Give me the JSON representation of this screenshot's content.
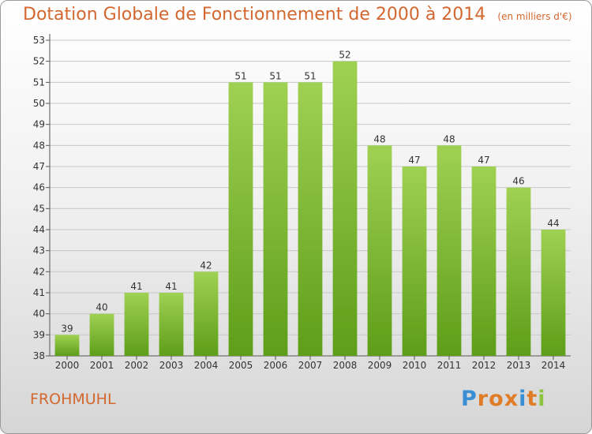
{
  "header": {
    "title": "Dotation Globale de Fonctionnement de 2000 à 2014",
    "unit_note": "(en milliers d'€)"
  },
  "footer": {
    "commune": "FROHMUHL",
    "logo_text": "Proxiti",
    "logo_colors": [
      "#3a8fd4",
      "#e07b27",
      "#e07b27",
      "#e07b27",
      "#3a8fd4",
      "#e07b27",
      "#8cc540"
    ]
  },
  "colors": {
    "bar": "#7cbd2e",
    "bar_light": "#9fd152",
    "bar_dark": "#5e9e18",
    "text_accent": "#d2672f",
    "grid": "#c8c8c8"
  },
  "chart_data": {
    "type": "bar",
    "categories": [
      "2000",
      "2001",
      "2002",
      "2003",
      "2004",
      "2005",
      "2006",
      "2007",
      "2008",
      "2009",
      "2010",
      "2011",
      "2012",
      "2013",
      "2014"
    ],
    "values": [
      39,
      40,
      41,
      41,
      42,
      51,
      51,
      51,
      52,
      48,
      47,
      48,
      47,
      46,
      44
    ],
    "yticks": [
      38,
      39,
      40,
      41,
      42,
      43,
      44,
      45,
      46,
      47,
      48,
      49,
      50,
      51,
      52,
      53
    ],
    "ylim": [
      38,
      53
    ],
    "grid": true,
    "data_labels": true
  }
}
